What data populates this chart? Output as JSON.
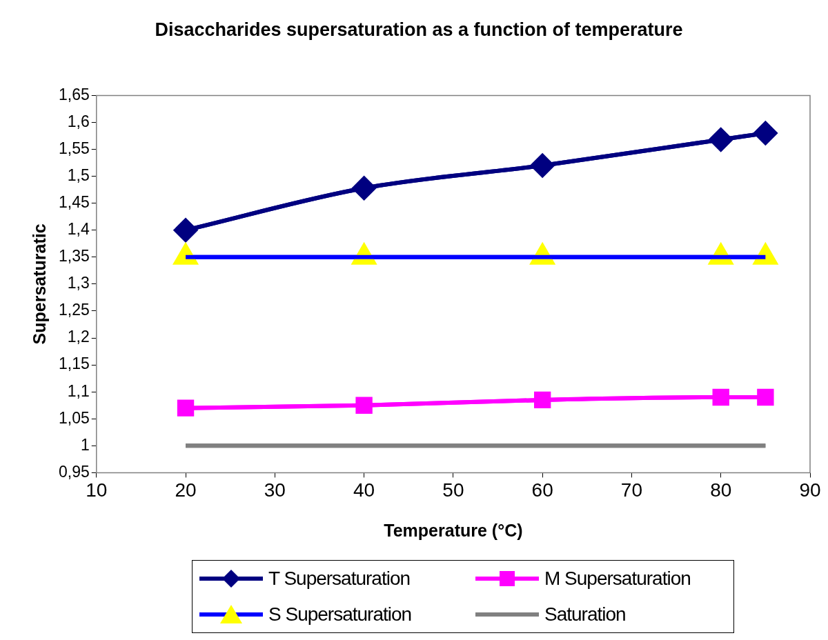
{
  "chart_data": {
    "type": "line",
    "title": "Disaccharides supersaturation as a function of temperature",
    "xlabel": "Temperature (°C)",
    "ylabel": "Supersaturatic",
    "x": [
      20,
      40,
      60,
      80,
      85
    ],
    "series": [
      {
        "name": "T Supersaturation",
        "color": "#000080",
        "marker": "diamond",
        "values": [
          1.4,
          1.478,
          1.52,
          1.568,
          1.58
        ]
      },
      {
        "name": "M Supersaturation",
        "color": "#ff00ff",
        "marker": "square",
        "values": [
          1.07,
          1.075,
          1.085,
          1.09,
          1.09
        ]
      },
      {
        "name": "S Supersaturation",
        "color": "#0000ff",
        "marker": "triangle",
        "values": [
          1.35,
          1.35,
          1.35,
          1.35,
          1.35
        ]
      },
      {
        "name": "Saturation",
        "color": "#808080",
        "marker": "none",
        "x": [
          20,
          85
        ],
        "values": [
          1,
          1
        ]
      }
    ],
    "xlim": [
      10,
      90
    ],
    "xticks": [
      10,
      20,
      30,
      40,
      50,
      60,
      70,
      80,
      90
    ],
    "ylim": [
      0.95,
      1.65
    ],
    "yticks": [
      {
        "value": 0.95,
        "label": "0,95"
      },
      {
        "value": 1,
        "label": "1"
      },
      {
        "value": 1.05,
        "label": "1,05"
      },
      {
        "value": 1.1,
        "label": "1,1"
      },
      {
        "value": 1.15,
        "label": "1,15"
      },
      {
        "value": 1.2,
        "label": "1,2"
      },
      {
        "value": 1.25,
        "label": "1,25"
      },
      {
        "value": 1.3,
        "label": "1,3"
      },
      {
        "value": 1.35,
        "label": "1,35"
      },
      {
        "value": 1.4,
        "label": "1,4"
      },
      {
        "value": 1.45,
        "label": "1,45"
      },
      {
        "value": 1.5,
        "label": "1,5"
      },
      {
        "value": 1.55,
        "label": "1,55"
      },
      {
        "value": 1.6,
        "label": "1,6"
      },
      {
        "value": 1.65,
        "label": "1,65"
      }
    ],
    "grid": false,
    "legend": "bottom",
    "line_style": "solid"
  }
}
